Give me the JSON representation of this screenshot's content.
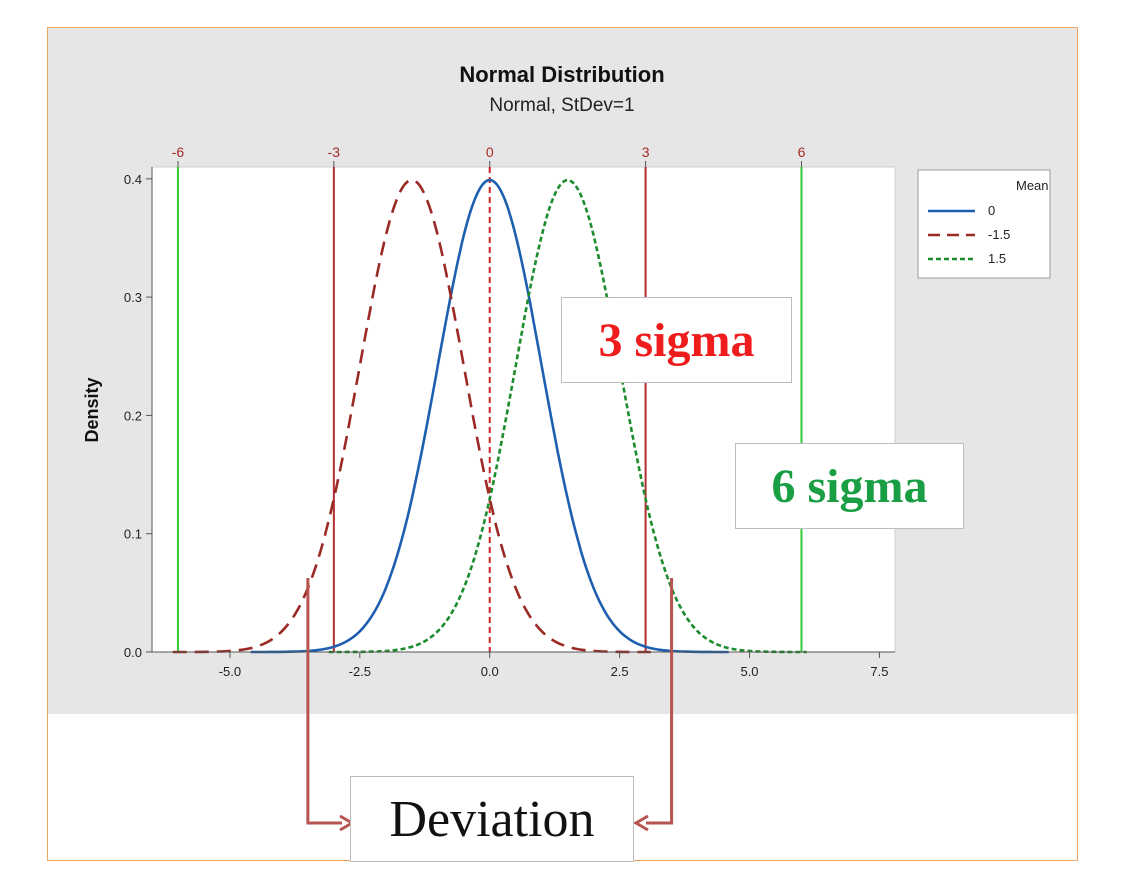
{
  "chart_data": {
    "type": "line",
    "title": "Normal Distribution",
    "subtitle": "Normal, StDev=1",
    "xlabel": "",
    "ylabel": "Density",
    "xlim": [
      -6.5,
      7.8
    ],
    "ylim": [
      0,
      0.41
    ],
    "x_ticks": [
      "-5.0",
      "-2.5",
      "0.0",
      "2.5",
      "5.0",
      "7.5"
    ],
    "y_ticks": [
      "0.0",
      "0.1",
      "0.2",
      "0.3",
      "0.4"
    ],
    "top_ticks": [
      "-6",
      "-3",
      "0",
      "3",
      "6"
    ],
    "legend": {
      "title": "Mean",
      "position": "right"
    },
    "series": [
      {
        "name": "0",
        "mean": 0,
        "stdev": 1,
        "style": "solid",
        "color": "#1f5fb0",
        "x": [
          -4,
          -3,
          -2,
          -1,
          0,
          1,
          2,
          3,
          4
        ],
        "values": [
          0.0001,
          0.0044,
          0.054,
          0.242,
          0.399,
          0.242,
          0.054,
          0.0044,
          0.0001
        ]
      },
      {
        "name": "-1.5",
        "mean": -1.5,
        "stdev": 1,
        "style": "dashed",
        "color": "#9b2a24",
        "x": [
          -5.5,
          -4.5,
          -3.5,
          -2.5,
          -1.5,
          -0.5,
          0.5,
          1.5,
          2.5
        ],
        "values": [
          0.0001,
          0.0044,
          0.054,
          0.242,
          0.399,
          0.242,
          0.054,
          0.0044,
          0.0001
        ]
      },
      {
        "name": "1.5",
        "mean": 1.5,
        "stdev": 1,
        "style": "dotted",
        "color": "#1c8c2e",
        "x": [
          -2.5,
          -1.5,
          -0.5,
          0.5,
          1.5,
          2.5,
          3.5,
          4.5,
          5.5
        ],
        "values": [
          0.0001,
          0.0044,
          0.054,
          0.242,
          0.399,
          0.242,
          0.054,
          0.0044,
          0.0001
        ]
      }
    ],
    "reference_lines": [
      {
        "x": -6,
        "color": "#33cc33"
      },
      {
        "x": -3,
        "color": "#b03030"
      },
      {
        "x": 0,
        "color": "#cc2222",
        "style": "dashed"
      },
      {
        "x": 3,
        "color": "#b03030"
      },
      {
        "x": 6,
        "color": "#33cc33"
      }
    ],
    "annotations": {
      "three_sigma": "3 sigma",
      "six_sigma": "6 sigma",
      "deviation": "Deviation"
    },
    "deviation_arrows": [
      -3.5,
      3.5
    ],
    "colors": {
      "panel_bg": "#e6e6e6",
      "plot_bg": "#ffffff",
      "frame_border": "#f0a560",
      "three_sigma": "#ee1c1c",
      "six_sigma": "#1a9e44",
      "arrow": "#b85450"
    }
  }
}
